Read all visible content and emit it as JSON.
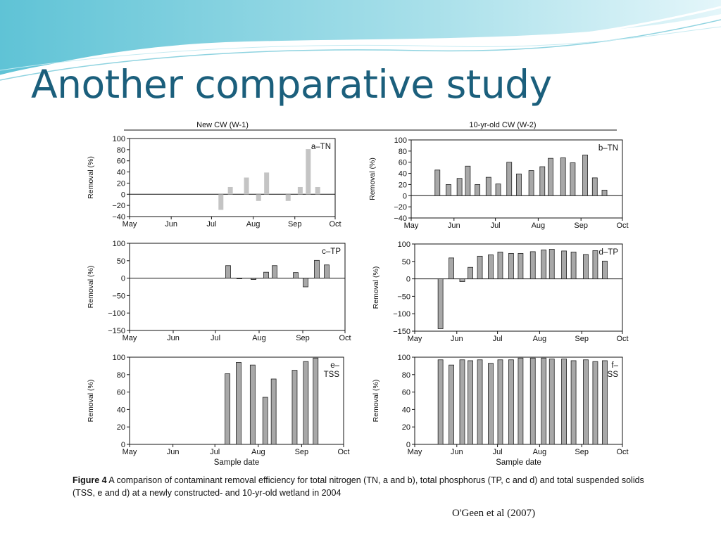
{
  "slide": {
    "title": "Another comparative study",
    "citation": "O'Geen et al (2007)"
  },
  "figure": {
    "left_header": "New CW (W-1)",
    "right_header": "10-yr-old CW (W-2)",
    "caption_label": "Figure 4",
    "caption_text": "A comparison of contaminant removal efficiency for total nitrogen (TN, a and b), total phosphorus (TP, c and d) and total suspended solids (TSS, e and d) at a newly constructed- and 10-yr-old wetland in 2004"
  },
  "colors": {
    "accent": "#1b5f7c",
    "bar_light": "#c4c4c4",
    "bar_dark": "#a8a8a8"
  },
  "chart_data": [
    {
      "type": "bar",
      "panel": "a",
      "panel_label": "a–TN",
      "ylabel": "Removal (%)",
      "xlabel": "",
      "ylim": [
        -40,
        100
      ],
      "yticks": [
        -40,
        -20,
        0,
        20,
        40,
        60,
        80,
        100
      ],
      "xticks": [
        "May",
        "Jun",
        "Jul",
        "Aug",
        "Sep",
        "Oct"
      ],
      "bar_style": "light",
      "bars": [
        {
          "date": "2004-07-08",
          "value": -28
        },
        {
          "date": "2004-07-15",
          "value": 13
        },
        {
          "date": "2004-07-27",
          "value": 30
        },
        {
          "date": "2004-08-05",
          "value": -12
        },
        {
          "date": "2004-08-11",
          "value": 39
        },
        {
          "date": "2004-08-27",
          "value": -12
        },
        {
          "date": "2004-09-05",
          "value": 13
        },
        {
          "date": "2004-09-11",
          "value": 81
        },
        {
          "date": "2004-09-18",
          "value": 13
        }
      ]
    },
    {
      "type": "bar",
      "panel": "b",
      "panel_label": "b–TN",
      "ylabel": "Removal (%)",
      "xlabel": "",
      "ylim": [
        -40,
        100
      ],
      "yticks": [
        -40,
        -20,
        0,
        20,
        40,
        60,
        80,
        100
      ],
      "xticks": [
        "May",
        "Jun",
        "Jul",
        "Aug",
        "Sep",
        "Oct"
      ],
      "bar_style": "dark",
      "bars": [
        {
          "date": "2004-05-20",
          "value": 46
        },
        {
          "date": "2004-05-28",
          "value": 20
        },
        {
          "date": "2004-06-05",
          "value": 31
        },
        {
          "date": "2004-06-11",
          "value": 53
        },
        {
          "date": "2004-06-18",
          "value": 20
        },
        {
          "date": "2004-06-26",
          "value": 33
        },
        {
          "date": "2004-07-03",
          "value": 21
        },
        {
          "date": "2004-07-11",
          "value": 60
        },
        {
          "date": "2004-07-18",
          "value": 39
        },
        {
          "date": "2004-07-27",
          "value": 45
        },
        {
          "date": "2004-08-04",
          "value": 52
        },
        {
          "date": "2004-08-10",
          "value": 67
        },
        {
          "date": "2004-08-19",
          "value": 68
        },
        {
          "date": "2004-08-26",
          "value": 59
        },
        {
          "date": "2004-09-04",
          "value": 73
        },
        {
          "date": "2004-09-11",
          "value": 32
        },
        {
          "date": "2004-09-18",
          "value": 10
        }
      ]
    },
    {
      "type": "bar",
      "panel": "c",
      "panel_label": "c–TP",
      "ylabel": "Removal (%)",
      "xlabel": "",
      "ylim": [
        -150,
        100
      ],
      "yticks": [
        -150,
        -100,
        -50,
        0,
        50,
        100
      ],
      "xticks": [
        "May",
        "Jun",
        "Jul",
        "Aug",
        "Sep",
        "Oct"
      ],
      "bar_style": "dark",
      "bars": [
        {
          "date": "2004-07-10",
          "value": 36
        },
        {
          "date": "2004-07-18",
          "value": -2
        },
        {
          "date": "2004-07-28",
          "value": -4
        },
        {
          "date": "2004-08-06",
          "value": 17
        },
        {
          "date": "2004-08-12",
          "value": 36
        },
        {
          "date": "2004-08-27",
          "value": 16
        },
        {
          "date": "2004-09-03",
          "value": -25
        },
        {
          "date": "2004-09-11",
          "value": 51
        },
        {
          "date": "2004-09-18",
          "value": 38
        }
      ]
    },
    {
      "type": "bar",
      "panel": "d",
      "panel_label": "d–TP",
      "ylabel": "Removal (%)",
      "xlabel": "",
      "ylim": [
        -150,
        100
      ],
      "yticks": [
        -150,
        -100,
        -50,
        0,
        50,
        100
      ],
      "xticks": [
        "May",
        "Jun",
        "Jul",
        "Aug",
        "Sep",
        "Oct"
      ],
      "bar_style": "dark",
      "bars": [
        {
          "date": "2004-05-20",
          "value": -143
        },
        {
          "date": "2004-05-28",
          "value": 60
        },
        {
          "date": "2004-06-05",
          "value": -8
        },
        {
          "date": "2004-06-11",
          "value": 33
        },
        {
          "date": "2004-06-18",
          "value": 65
        },
        {
          "date": "2004-06-26",
          "value": 69
        },
        {
          "date": "2004-07-03",
          "value": 77
        },
        {
          "date": "2004-07-11",
          "value": 73
        },
        {
          "date": "2004-07-18",
          "value": 73
        },
        {
          "date": "2004-07-27",
          "value": 78
        },
        {
          "date": "2004-08-04",
          "value": 83
        },
        {
          "date": "2004-08-10",
          "value": 85
        },
        {
          "date": "2004-08-19",
          "value": 80
        },
        {
          "date": "2004-08-26",
          "value": 77
        },
        {
          "date": "2004-09-04",
          "value": 70
        },
        {
          "date": "2004-09-11",
          "value": 81
        },
        {
          "date": "2004-09-18",
          "value": 51
        }
      ]
    },
    {
      "type": "bar",
      "panel": "e",
      "panel_label": "e–\nTSS",
      "ylabel": "Removal (%)",
      "xlabel": "Sample date",
      "ylim": [
        0,
        100
      ],
      "yticks": [
        0,
        20,
        40,
        60,
        80,
        100
      ],
      "xticks": [
        "May",
        "Jun",
        "Jul",
        "Aug",
        "Sep",
        "Oct"
      ],
      "bar_style": "dark",
      "bars": [
        {
          "date": "2004-07-10",
          "value": 81
        },
        {
          "date": "2004-07-18",
          "value": 94
        },
        {
          "date": "2004-07-28",
          "value": 91
        },
        {
          "date": "2004-08-06",
          "value": 54
        },
        {
          "date": "2004-08-12",
          "value": 75
        },
        {
          "date": "2004-08-27",
          "value": 85
        },
        {
          "date": "2004-09-04",
          "value": 95
        },
        {
          "date": "2004-09-11",
          "value": 99
        }
      ]
    },
    {
      "type": "bar",
      "panel": "f",
      "panel_label": "f–\nTSS",
      "ylabel": "Removal (%)",
      "xlabel": "Sample date",
      "ylim": [
        0,
        100
      ],
      "yticks": [
        0,
        20,
        40,
        60,
        80,
        100
      ],
      "xticks": [
        "May",
        "Jun",
        "Jul",
        "Aug",
        "Sep",
        "Oct"
      ],
      "bar_style": "dark",
      "bars": [
        {
          "date": "2004-05-20",
          "value": 97
        },
        {
          "date": "2004-05-28",
          "value": 91
        },
        {
          "date": "2004-06-05",
          "value": 97
        },
        {
          "date": "2004-06-11",
          "value": 96
        },
        {
          "date": "2004-06-18",
          "value": 97
        },
        {
          "date": "2004-06-26",
          "value": 93
        },
        {
          "date": "2004-07-03",
          "value": 97
        },
        {
          "date": "2004-07-11",
          "value": 97
        },
        {
          "date": "2004-07-18",
          "value": 99
        },
        {
          "date": "2004-07-27",
          "value": 99
        },
        {
          "date": "2004-08-04",
          "value": 99
        },
        {
          "date": "2004-08-10",
          "value": 98
        },
        {
          "date": "2004-08-19",
          "value": 98
        },
        {
          "date": "2004-08-26",
          "value": 96
        },
        {
          "date": "2004-09-04",
          "value": 97
        },
        {
          "date": "2004-09-11",
          "value": 95
        },
        {
          "date": "2004-09-18",
          "value": 96
        }
      ]
    }
  ]
}
